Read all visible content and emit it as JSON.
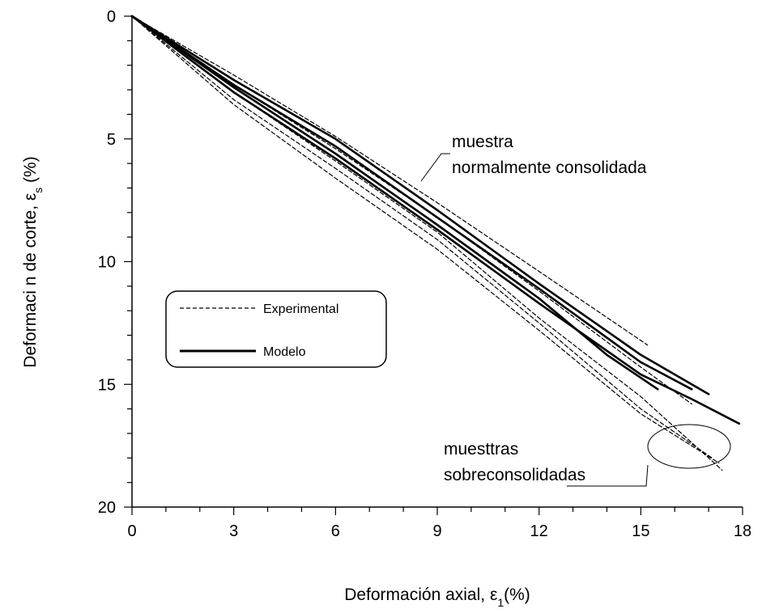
{
  "chart_data": {
    "type": "line",
    "xlabel_main": "Deformación axial, ε",
    "xlabel_sub": "1",
    "xlabel_tail": "(%)",
    "ylabel_main": "Deformaci  n de corte, ε",
    "ylabel_sub": "s",
    "ylabel_tail": " (%)",
    "xlim": [
      0,
      18
    ],
    "ylim": [
      0,
      20
    ],
    "y_inverted": true,
    "x_ticks": [
      0,
      3,
      6,
      9,
      12,
      15,
      18
    ],
    "x_tick_labels": [
      "0",
      "3",
      "6",
      "9",
      "12",
      "15",
      "18"
    ],
    "y_ticks": [
      0,
      5,
      10,
      15,
      20
    ],
    "y_tick_labels": [
      "0",
      "5",
      "10",
      "15",
      "20"
    ],
    "grid": false,
    "legend": {
      "placement": "center-left",
      "entries": [
        {
          "label": "Experimental",
          "style": "dashed"
        },
        {
          "label": "Modelo",
          "style": "solid"
        }
      ]
    },
    "annotations": {
      "nc_line1": "muestra",
      "nc_line2": "normalmente consolidada",
      "oc_line1": "muesttras",
      "oc_line2": "sobreconsolidadas"
    },
    "series": [
      {
        "style": "dashed",
        "points": [
          [
            0,
            0
          ],
          [
            3,
            2.4
          ],
          [
            6,
            4.9
          ],
          [
            9,
            7.6
          ],
          [
            12,
            10.4
          ],
          [
            15.2,
            13.4
          ]
        ]
      },
      {
        "style": "dashed",
        "points": [
          [
            0,
            0
          ],
          [
            3,
            2.8
          ],
          [
            6,
            5.4
          ],
          [
            9,
            8.2
          ],
          [
            12,
            11.2
          ],
          [
            15,
            14.3
          ],
          [
            16.5,
            15.8
          ]
        ]
      },
      {
        "style": "dashed",
        "points": [
          [
            0,
            0
          ],
          [
            3,
            3.1
          ],
          [
            6,
            5.9
          ],
          [
            9,
            8.8
          ],
          [
            12,
            12.3
          ],
          [
            15,
            15.5
          ],
          [
            17.4,
            18.5
          ]
        ]
      },
      {
        "style": "dashed",
        "points": [
          [
            0,
            0
          ],
          [
            3,
            3.6
          ],
          [
            6,
            6.6
          ],
          [
            9,
            9.5
          ],
          [
            12,
            12.8
          ],
          [
            15,
            16.2
          ],
          [
            17.3,
            18.2
          ]
        ]
      },
      {
        "style": "dashed",
        "points": [
          [
            0,
            0
          ],
          [
            3,
            3.4
          ],
          [
            6,
            6.2
          ],
          [
            9,
            9.1
          ],
          [
            12,
            12.5
          ],
          [
            15,
            16.0
          ],
          [
            17.1,
            18.0
          ]
        ]
      },
      {
        "style": "solid",
        "points": [
          [
            0,
            0
          ],
          [
            3,
            2.6
          ],
          [
            6,
            5.0
          ],
          [
            9,
            7.9
          ],
          [
            12,
            10.9
          ],
          [
            15,
            13.8
          ],
          [
            17,
            15.4
          ]
        ]
      },
      {
        "style": "solid",
        "points": [
          [
            0,
            0
          ],
          [
            3,
            2.8
          ],
          [
            6,
            5.3
          ],
          [
            9,
            8.2
          ],
          [
            12,
            11.1
          ],
          [
            15,
            14.1
          ],
          [
            16.5,
            15.2
          ]
        ]
      },
      {
        "style": "solid",
        "points": [
          [
            0,
            0
          ],
          [
            3,
            2.9
          ],
          [
            6,
            5.6
          ],
          [
            9,
            8.5
          ],
          [
            12,
            11.5
          ],
          [
            14,
            13.8
          ],
          [
            15.5,
            15.2
          ]
        ]
      },
      {
        "style": "solid",
        "points": [
          [
            0,
            0
          ],
          [
            3,
            3.1
          ],
          [
            6,
            5.8
          ],
          [
            9,
            8.7
          ],
          [
            12,
            11.7
          ],
          [
            15,
            14.6
          ],
          [
            16.5,
            15.6
          ],
          [
            17.9,
            16.6
          ]
        ]
      }
    ]
  }
}
